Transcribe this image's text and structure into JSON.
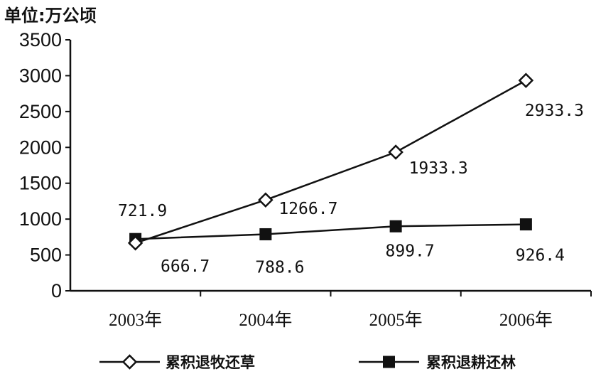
{
  "chart_data": {
    "type": "line",
    "unit_label": "单位:万公顷",
    "categories": [
      "2003年",
      "2004年",
      "2005年",
      "2006年"
    ],
    "ylim": [
      0,
      3500
    ],
    "yticks": [
      0,
      500,
      1000,
      1500,
      2000,
      2500,
      3000,
      3500
    ],
    "grid": false,
    "legend_position": "bottom",
    "series": [
      {
        "name": "累积退牧还草",
        "marker": "diamond-open",
        "values": [
          666.7,
          1266.7,
          1933.3,
          2933.3
        ],
        "labels": [
          "666.7",
          "1266.7",
          "1933.3",
          "2933.3"
        ]
      },
      {
        "name": "累积退耕还林",
        "marker": "square-filled",
        "values": [
          721.9,
          788.6,
          899.7,
          926.4
        ],
        "labels": [
          "721.9",
          "788.6",
          "899.7",
          "926.4"
        ]
      }
    ],
    "colors": {
      "line": "#111111",
      "background": "#ffffff"
    }
  }
}
